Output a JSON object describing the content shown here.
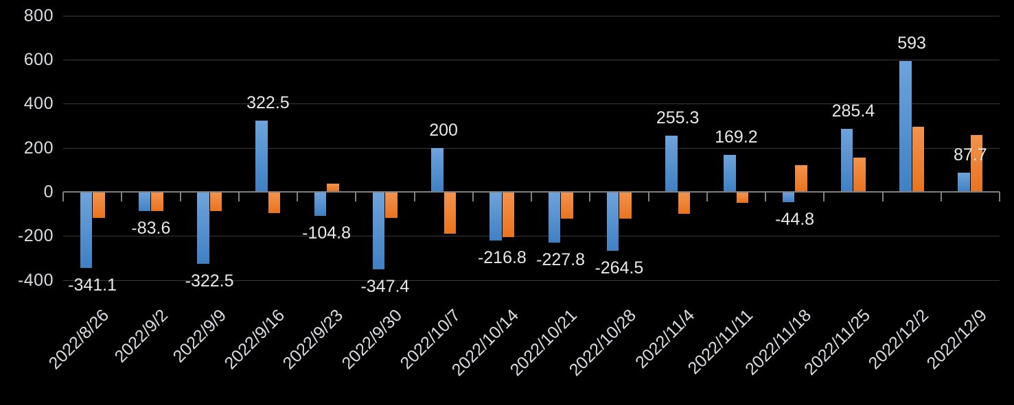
{
  "chart_data": {
    "type": "bar",
    "title": "",
    "xlabel": "",
    "ylabel": "",
    "grid": true,
    "legend": null,
    "background_color": "#000000",
    "categories": [
      "2022/8/26",
      "2022/9/2",
      "2022/9/9",
      "2022/9/16",
      "2022/9/23",
      "2022/9/30",
      "2022/10/7",
      "2022/10/14",
      "2022/10/21",
      "2022/10/28",
      "2022/11/4",
      "2022/11/11",
      "2022/11/18",
      "2022/11/25",
      "2022/12/2",
      "2022/12/9"
    ],
    "series": [
      {
        "name": "blue-series",
        "color": "#4A89CE",
        "gradient_top": "#6FA3DB",
        "gradient_bottom": "#3F80C4",
        "values": [
          -341.1,
          -83.6,
          -322.5,
          322.5,
          -104.8,
          -347.4,
          200,
          -216.8,
          -227.8,
          -264.5,
          255.3,
          169.2,
          -44.8,
          285.4,
          593,
          87.7
        ],
        "data_labels": [
          "-341.1",
          "-83.6",
          "-322.5",
          "322.5",
          "-104.8",
          "-347.4",
          "200",
          "-216.8",
          "-227.8",
          "-264.5",
          "255.3",
          "169.2",
          "-44.8",
          "285.4",
          "593",
          "87.7"
        ]
      },
      {
        "name": "orange-series",
        "color": "#ED7D31",
        "gradient_top": "#F2934D",
        "gradient_bottom": "#E9731E",
        "values": [
          -114,
          -85,
          -84,
          -93,
          39,
          -116,
          -185,
          -202,
          -119,
          -119,
          -95,
          -45,
          122,
          156,
          296,
          257
        ],
        "data_labels": null
      }
    ],
    "y_axis": {
      "min": -400,
      "max": 800,
      "tick_interval": 200,
      "tick_labels": [
        "800",
        "600",
        "400",
        "200",
        "0",
        "-200",
        "-400"
      ],
      "tick_values": [
        800,
        600,
        400,
        200,
        0,
        -200,
        -400
      ]
    },
    "x_axis": {
      "label_rotation_deg": -45
    },
    "colors": {
      "grid_line": "#3a3a3a",
      "axis_line": "#808080",
      "axis_text": "#D9DCE3",
      "data_label_text": "#E8E8E8"
    }
  }
}
